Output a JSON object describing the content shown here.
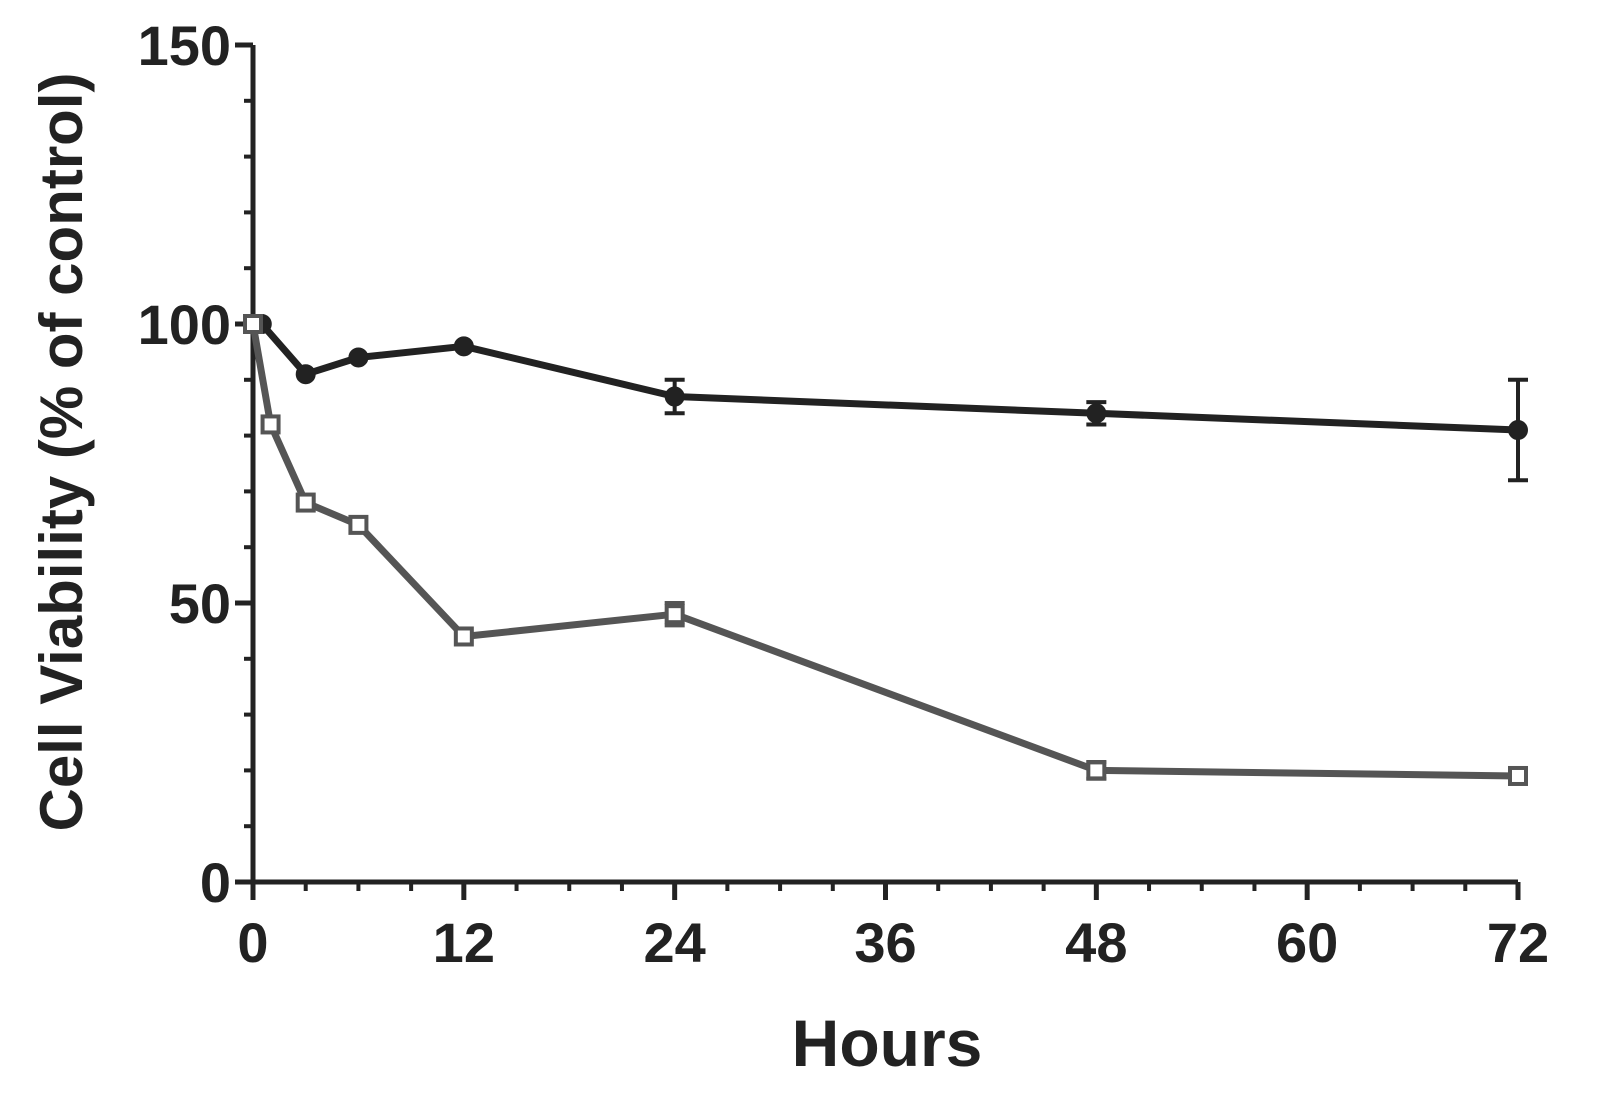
{
  "chart_data": {
    "type": "line",
    "title": "",
    "xlabel": "Hours",
    "ylabel": "Cell Viability (% of control)",
    "xlim": [
      0,
      72
    ],
    "ylim": [
      0,
      150
    ],
    "x_ticks": [
      0,
      12,
      24,
      36,
      48,
      60,
      72
    ],
    "x_tick_labels": [
      "0",
      "12",
      "24",
      "36",
      "48",
      "60",
      "72"
    ],
    "y_ticks": [
      0,
      50,
      100,
      150
    ],
    "y_tick_labels": [
      "0",
      "50",
      "100",
      "150"
    ],
    "x_minor_step": 3,
    "y_minor_step": 10,
    "grid": false,
    "legend": "none",
    "series": [
      {
        "marker": "filled-circle",
        "color": "#222222",
        "points": [
          {
            "x": 0,
            "y": 100,
            "err": 0
          },
          {
            "x": 0.5,
            "y": 100,
            "err": 0
          },
          {
            "x": 3,
            "y": 91,
            "err": 0
          },
          {
            "x": 6,
            "y": 94,
            "err": 0
          },
          {
            "x": 12,
            "y": 96,
            "err": 0
          },
          {
            "x": 24,
            "y": 87,
            "err": 3
          },
          {
            "x": 48,
            "y": 84,
            "err": 2
          },
          {
            "x": 72,
            "y": 81,
            "err": 9
          }
        ]
      },
      {
        "marker": "open-square",
        "color": "#555555",
        "points": [
          {
            "x": 0,
            "y": 100,
            "err": 0
          },
          {
            "x": 1,
            "y": 82,
            "err": 0
          },
          {
            "x": 3,
            "y": 68,
            "err": 0
          },
          {
            "x": 6,
            "y": 64,
            "err": 0
          },
          {
            "x": 12,
            "y": 44,
            "err": 0
          },
          {
            "x": 24,
            "y": 48,
            "err": 2
          },
          {
            "x": 48,
            "y": 20,
            "err": 1.5
          },
          {
            "x": 72,
            "y": 19,
            "err": 0
          }
        ]
      }
    ]
  }
}
